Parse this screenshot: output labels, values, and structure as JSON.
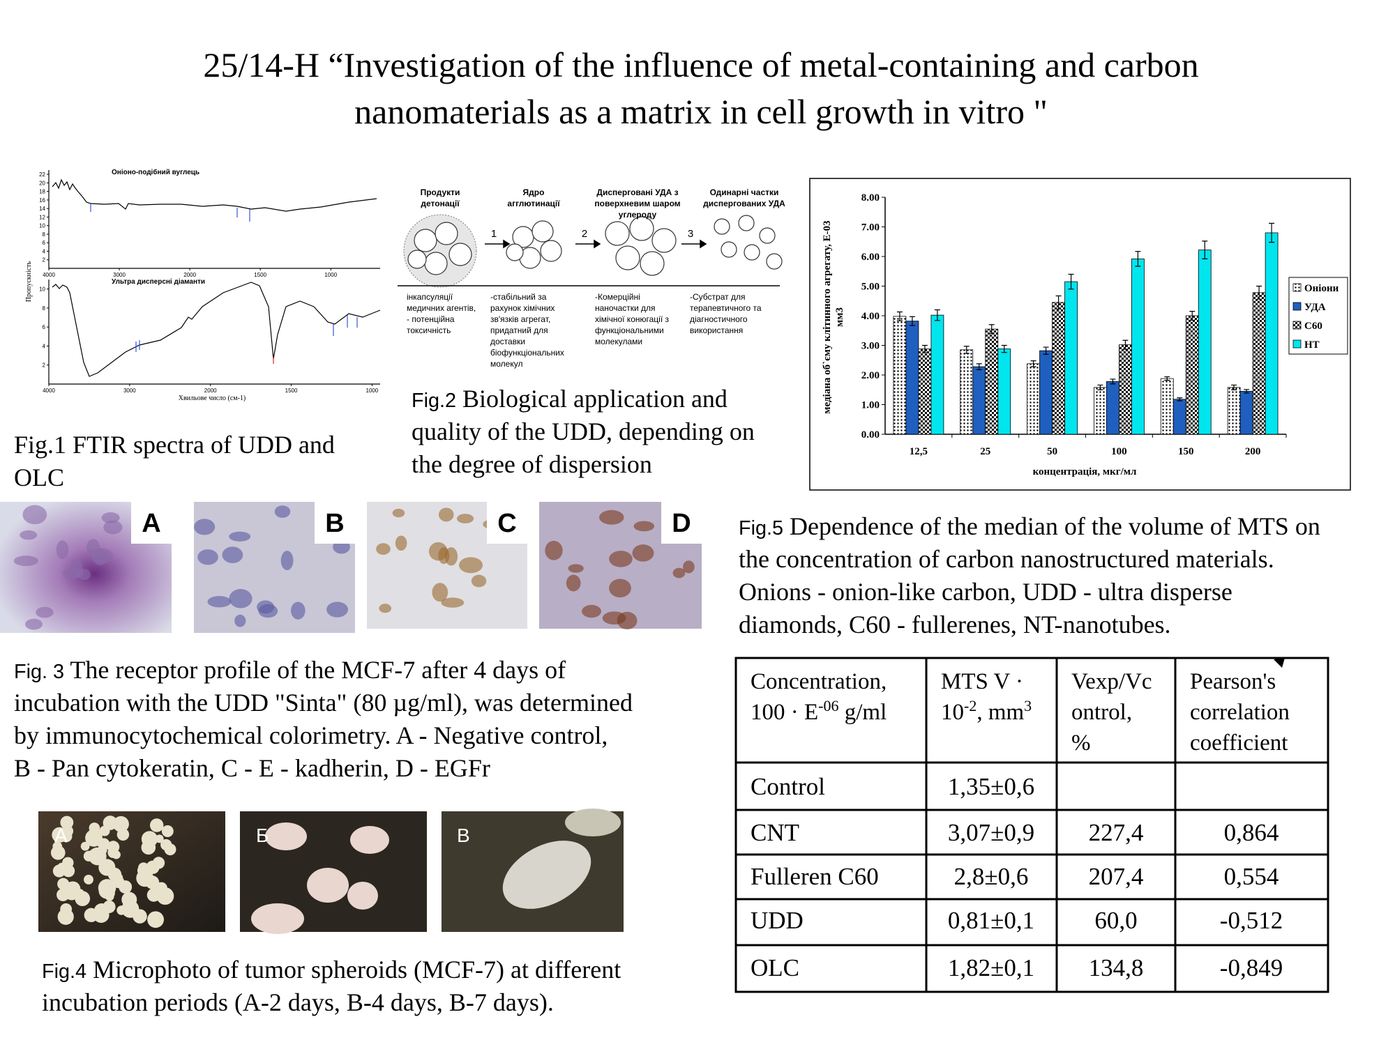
{
  "title": {
    "lines": [
      "25/14-H “Investigation of the influence of metal-containing and carbon",
      "nanomaterials as a matrix in cell growth in vitro \""
    ]
  },
  "fig1": {
    "plots": [
      {
        "title": "Оніоно-подібний вуглець",
        "xlim": [
          4000,
          650
        ],
        "ylim": [
          0,
          23
        ],
        "xticks": [
          4000,
          3000,
          2000,
          1500,
          1000
        ],
        "yticks": [
          2,
          4,
          6,
          8,
          10,
          12,
          14,
          16,
          18,
          20,
          22
        ]
      },
      {
        "title": "Ультра дисперсні діаманти",
        "xlim": [
          4000,
          950
        ],
        "ylim": [
          0,
          11
        ],
        "xticks": [
          4000,
          3000,
          2000,
          1500,
          1000
        ],
        "yticks": [
          2,
          4,
          6,
          8,
          10
        ]
      }
    ],
    "ylabel": "Пропускність",
    "xlabel": "Хвильове число (см-1)",
    "caption": {
      "lines": [
        "Fig.1 FTIR spectra of UDD and",
        "OLC"
      ]
    }
  },
  "fig2": {
    "headers": [
      [
        "Продукти",
        "детонації"
      ],
      [
        "Ядро",
        "агглютинації"
      ],
      [
        "Дисперговані УДА з",
        "поверхневим шаром",
        "углероду"
      ],
      [
        "Одинарні частки",
        "диспергованих УДА"
      ]
    ],
    "steps": [
      "1",
      "2",
      "3"
    ],
    "notes": [
      [
        "інкапсуляції",
        "медичних агентів,",
        "- потенційна",
        "токсичність"
      ],
      [
        "-стабільний за",
        "рахунок хімічних",
        "зв'язків агрегат,",
        "придатний для",
        "доставки",
        "біофункціональних",
        "молекул"
      ],
      [
        "-Комерційні",
        "наночастки для",
        "хімічної конюгації з",
        "функціональними",
        "молекулами"
      ],
      [
        "-Субстрат для",
        "терапевтичного та",
        "діагностичного",
        "використання"
      ]
    ],
    "caption": {
      "label": "Fig.2",
      "lines": [
        " Biological application and",
        "quality of the UDD, depending on",
        "the degree of dispersion"
      ]
    }
  },
  "fig3": {
    "panels": [
      "A",
      "B",
      "C",
      "D"
    ],
    "caption": {
      "label": "Fig. 3",
      "lines": [
        " The receptor profile of the MCF-7 after 4 days of",
        "incubation with the UDD \"Sinta\" (80 µg/ml), was determined",
        "by immunocytochemical colorimetry. A - Negative control,",
        "B - Pan cytokeratin, C - E - kadherin, D - EGFr"
      ]
    }
  },
  "fig4": {
    "panels": [
      "А",
      "Б",
      "В"
    ],
    "caption": {
      "label": "Fig.4",
      "lines": [
        " Microphoto of tumor spheroids (MCF-7) at different",
        "incubation periods (A-2 days, B-4 days, B-7 days)."
      ]
    }
  },
  "chart_data": {
    "type": "bar",
    "categories": [
      "12,5",
      "25",
      "50",
      "100",
      "150",
      "200"
    ],
    "xlabel": "концентрація, мкг/мл",
    "ylabel": [
      "медіана об`єму клітинного агрегату, Е-03",
      "мм3"
    ],
    "ylim": [
      0,
      8
    ],
    "yticks": [
      {
        "value": 0,
        "label": "0.00"
      },
      {
        "value": 1,
        "label": "1.00"
      },
      {
        "value": 2,
        "label": "2.00"
      },
      {
        "value": 3,
        "label": "3.00"
      },
      {
        "value": 4,
        "label": "4.00"
      },
      {
        "value": 5,
        "label": "5.00"
      },
      {
        "value": 6,
        "label": "6.00"
      },
      {
        "value": 7,
        "label": "7.00"
      },
      {
        "value": 8,
        "label": "8.00"
      }
    ],
    "legend": "right",
    "series": [
      {
        "name": "Оніони",
        "color": "#ffffff",
        "pattern": "dots",
        "values": [
          3.98,
          2.85,
          2.38,
          1.58,
          1.88,
          1.58
        ],
        "errors": [
          0.15,
          0.12,
          0.1,
          0.08,
          0.06,
          0.08
        ]
      },
      {
        "name": "УДА",
        "color": "#1f5fbf",
        "values": [
          3.82,
          2.28,
          2.82,
          1.78,
          1.18,
          1.45
        ],
        "errors": [
          0.15,
          0.1,
          0.12,
          0.08,
          0.05,
          0.06
        ]
      },
      {
        "name": "С60",
        "color": "#000000",
        "pattern": "checker",
        "values": [
          2.88,
          3.55,
          4.45,
          3.02,
          4.0,
          4.78
        ],
        "errors": [
          0.12,
          0.15,
          0.22,
          0.15,
          0.15,
          0.22
        ]
      },
      {
        "name": "НТ",
        "color": "#00e5ee",
        "values": [
          4.02,
          2.88,
          5.15,
          5.92,
          6.22,
          6.8
        ],
        "errors": [
          0.18,
          0.12,
          0.25,
          0.25,
          0.3,
          0.32
        ]
      }
    ]
  },
  "fig5": {
    "caption": {
      "label": "Fig.5",
      "lines": [
        " Dependence of the median of the volume of MTS on",
        "the concentration of carbon nanostructured materials.",
        "Onions - onion-like carbon, UDD - ultra disperse",
        "diamonds, C60 - fullerenes, NT-nanotubes."
      ]
    }
  },
  "table": {
    "header": [
      [
        [
          {
            "t": "Concentration,"
          }
        ],
        [
          {
            "t": "100 · E"
          },
          {
            "sup": "-06"
          },
          {
            "t": " g/ml"
          }
        ]
      ],
      [
        [
          {
            "t": "MTS V ·"
          }
        ],
        [
          {
            "t": "10"
          },
          {
            "sup": "-2"
          },
          {
            "t": ", mm"
          },
          {
            "sup": "3"
          }
        ]
      ],
      [
        [
          {
            "t": "Vexp/Vc"
          }
        ],
        [
          {
            "t": "ontrol,"
          }
        ],
        [
          {
            "t": "%"
          }
        ]
      ],
      [
        [
          {
            "t": "Pearson's"
          }
        ],
        [
          {
            "t": "correlation"
          }
        ],
        [
          {
            "t": "coefficient"
          }
        ]
      ]
    ],
    "rows": [
      [
        "Control",
        "1,35±0,6",
        null,
        null
      ],
      [
        "CNT",
        "3,07±0,9",
        "227,4",
        "0,864"
      ],
      [
        "Fulleren C60",
        "2,8±0,6",
        "207,4",
        "0,554"
      ],
      [
        "UDD",
        "0,81±0,1",
        "60,0",
        "-0,512"
      ],
      [
        "OLC",
        "1,82±0,1",
        "134,8",
        "-0,849"
      ]
    ]
  }
}
